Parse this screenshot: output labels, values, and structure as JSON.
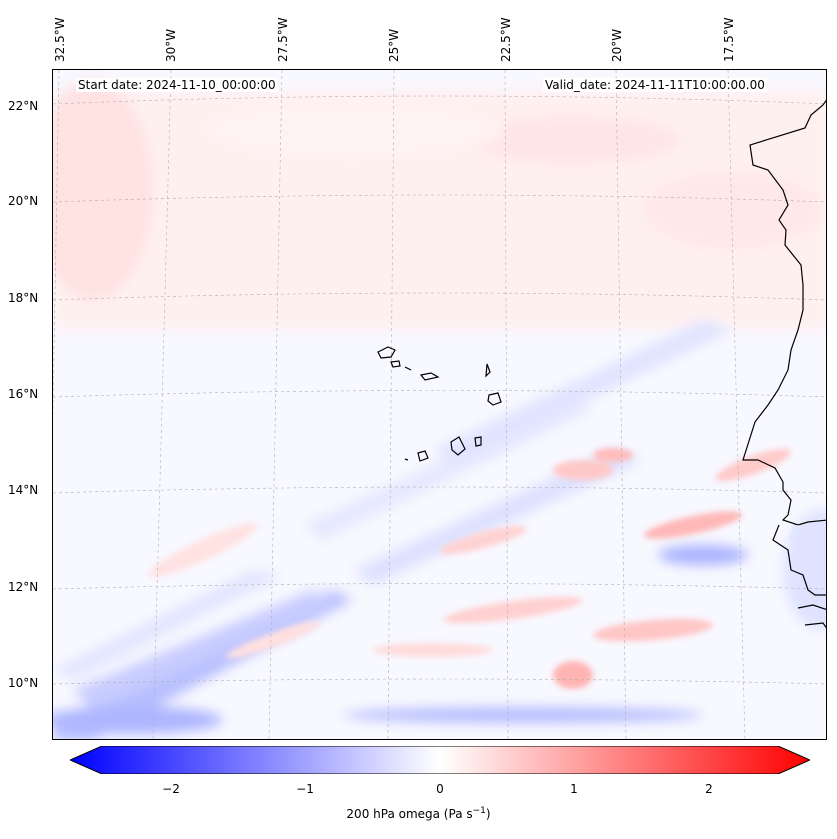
{
  "map": {
    "start_date": "Start date: 2024-11-10_00:00:00",
    "valid_date": "Valid_date: 2024-11-11T10:00:00.00",
    "lon_labels": [
      "32.5°W",
      "30°W",
      "27.5°W",
      "25°W",
      "22.5°W",
      "20°W",
      "17.5°W"
    ],
    "lat_labels": [
      "22°N",
      "20°N",
      "18°N",
      "16°N",
      "14°N",
      "12°N",
      "10°N"
    ],
    "field": "200 hPa omega",
    "colormap": {
      "negative": "#0000ff",
      "zero": "#ffffff",
      "positive": "#ff0000"
    }
  },
  "colorbar": {
    "label": "200 hPa omega (Pa s",
    "label_sup": "−1",
    "label_end": ")",
    "ticks": [
      "−2",
      "−1",
      "0",
      "1",
      "2"
    ],
    "range": [
      -2.75,
      2.75
    ]
  }
}
